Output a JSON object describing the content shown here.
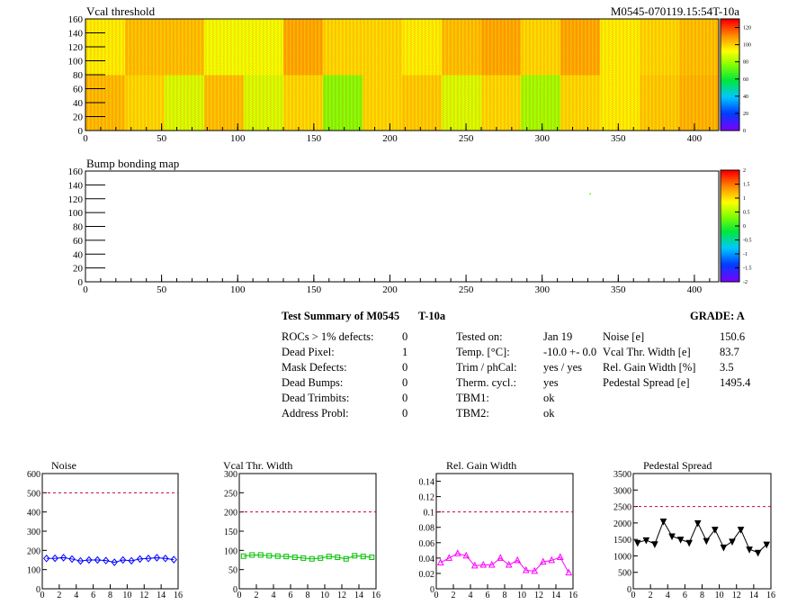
{
  "top_map": {
    "title": "Vcal threshold",
    "module_label": "M0545-070119.15:54T-10a",
    "x_ticks": [
      "0",
      "50",
      "100",
      "150",
      "200",
      "250",
      "300",
      "350",
      "400"
    ],
    "y_ticks": [
      "0",
      "20",
      "40",
      "60",
      "80",
      "100",
      "120",
      "140",
      "160"
    ],
    "palette_ticks": [
      "0",
      "20",
      "40",
      "60",
      "80",
      "100",
      "120"
    ]
  },
  "bump_map": {
    "title": "Bump bonding map",
    "x_ticks": [
      "0",
      "50",
      "100",
      "150",
      "200",
      "250",
      "300",
      "350",
      "400"
    ],
    "y_ticks": [
      "0",
      "20",
      "40",
      "60",
      "80",
      "100",
      "120",
      "140",
      "160"
    ],
    "palette_ticks": [
      "-2",
      "-1.5",
      "-1",
      "-0.5",
      "0",
      "0.5",
      "1",
      "1.5",
      "2"
    ]
  },
  "summary": {
    "title": "Test Summary of M0545",
    "temp_label": "T-10a",
    "grade": "GRADE:  A",
    "defects": [
      {
        "label": "ROCs > 1% defects:",
        "value": "0"
      },
      {
        "label": "Dead Pixel:",
        "value": "1"
      },
      {
        "label": "Mask Defects:",
        "value": "0"
      },
      {
        "label": "Dead Bumps:",
        "value": "0"
      },
      {
        "label": "Dead Trimbits:",
        "value": "0"
      },
      {
        "label": "Address Probl:",
        "value": "0"
      }
    ],
    "conditions": [
      {
        "label": "Tested on:",
        "value": "Jan 19"
      },
      {
        "label": "Temp. [°C]:",
        "value": "-10.0 +- 0.0"
      },
      {
        "label": "Trim / phCal:",
        "value": "yes / yes"
      },
      {
        "label": "Therm. cycl.:",
        "value": "yes"
      },
      {
        "label": "TBM1:",
        "value": "ok"
      },
      {
        "label": "TBM2:",
        "value": "ok"
      }
    ],
    "results": [
      {
        "label": "Noise [e]",
        "value": "150.6"
      },
      {
        "label": "Vcal Thr. Width [e]",
        "value": "83.7"
      },
      {
        "label": "Rel. Gain Width [%]",
        "value": "3.5"
      },
      {
        "label": "Pedestal Spread [e]",
        "value": "1495.4"
      }
    ]
  },
  "chart_data": [
    {
      "type": "heatmap",
      "title": "Vcal threshold",
      "xlim": [
        0,
        416
      ],
      "ylim": [
        0,
        160
      ],
      "zlim": [
        0,
        130
      ],
      "roc_mean_threshold": [
        105,
        100,
        88,
        104,
        88,
        100,
        76,
        100,
        102,
        88,
        100,
        80,
        100,
        96,
        102,
        106,
        96,
        104,
        104,
        92,
        92,
        108,
        100,
        100,
        96,
        104,
        108,
        100,
        108,
        96,
        100,
        104
      ],
      "roc_layout": "16 columns x 2 rows (first 16 = lower row, last 16 = upper row)"
    },
    {
      "type": "heatmap",
      "title": "Bump bonding map",
      "xlim": [
        0,
        416
      ],
      "ylim": [
        0,
        160
      ],
      "zlim": [
        -2,
        2
      ],
      "marked_pixels": [
        {
          "x": 331,
          "y": 128,
          "z": 0.3
        }
      ]
    },
    {
      "type": "line",
      "title": "Noise",
      "x": [
        0,
        1,
        2,
        3,
        4,
        5,
        6,
        7,
        8,
        9,
        10,
        11,
        12,
        13,
        14,
        15
      ],
      "values": [
        158,
        159,
        162,
        155,
        145,
        150,
        150,
        147,
        138,
        150,
        146,
        155,
        158,
        162,
        158,
        152
      ],
      "xlim": [
        0,
        16
      ],
      "ylim": [
        0,
        600
      ],
      "limit": 500,
      "y_ticks": [
        "0",
        "100",
        "200",
        "300",
        "400",
        "500",
        "600"
      ],
      "x_ticks": [
        "0",
        "2",
        "4",
        "6",
        "8",
        "10",
        "12",
        "14",
        "16"
      ],
      "color": "#0000ff",
      "marker": "diamond"
    },
    {
      "type": "line",
      "title": "Vcal Thr. Width",
      "x": [
        0,
        1,
        2,
        3,
        4,
        5,
        6,
        7,
        8,
        9,
        10,
        11,
        12,
        13,
        14,
        15
      ],
      "values": [
        85,
        88,
        88,
        86,
        85,
        84,
        82,
        80,
        78,
        80,
        84,
        82,
        78,
        86,
        84,
        82
      ],
      "xlim": [
        0,
        16
      ],
      "ylim": [
        0,
        300
      ],
      "limit": 200,
      "y_ticks": [
        "0",
        "50",
        "100",
        "150",
        "200",
        "250",
        "300"
      ],
      "x_ticks": [
        "0",
        "2",
        "4",
        "6",
        "8",
        "10",
        "12",
        "14",
        "16"
      ],
      "color": "#00c000",
      "marker": "square"
    },
    {
      "type": "line",
      "title": "Rel. Gain Width",
      "x": [
        0,
        1,
        2,
        3,
        4,
        5,
        6,
        7,
        8,
        9,
        10,
        11,
        12,
        13,
        14,
        15
      ],
      "values": [
        0.034,
        0.04,
        0.046,
        0.043,
        0.03,
        0.031,
        0.031,
        0.04,
        0.031,
        0.037,
        0.024,
        0.023,
        0.035,
        0.037,
        0.041,
        0.021
      ],
      "xlim": [
        0,
        16
      ],
      "ylim": [
        0,
        0.15
      ],
      "limit": 0.1,
      "y_ticks": [
        "0",
        "0.02",
        "0.04",
        "0.06",
        "0.08",
        "0.1",
        "0.12",
        "0.14"
      ],
      "x_ticks": [
        "0",
        "2",
        "4",
        "6",
        "8",
        "10",
        "12",
        "14",
        "16"
      ],
      "color": "#ff00ff",
      "marker": "triangle"
    },
    {
      "type": "line",
      "title": "Pedestal Spread",
      "x": [
        0,
        1,
        2,
        3,
        4,
        5,
        6,
        7,
        8,
        9,
        10,
        11,
        12,
        13,
        14,
        15
      ],
      "values": [
        1400,
        1480,
        1360,
        2050,
        1600,
        1500,
        1400,
        2000,
        1460,
        1800,
        1260,
        1440,
        1800,
        1200,
        1100,
        1350
      ],
      "xlim": [
        0,
        16
      ],
      "ylim": [
        0,
        3500
      ],
      "limit": 2500,
      "y_ticks": [
        "0",
        "500",
        "1000",
        "1500",
        "2000",
        "2500",
        "3000",
        "3500"
      ],
      "x_ticks": [
        "0",
        "2",
        "4",
        "6",
        "8",
        "10",
        "12",
        "14",
        "16"
      ],
      "color": "#000000",
      "marker": "down-triangle"
    }
  ]
}
